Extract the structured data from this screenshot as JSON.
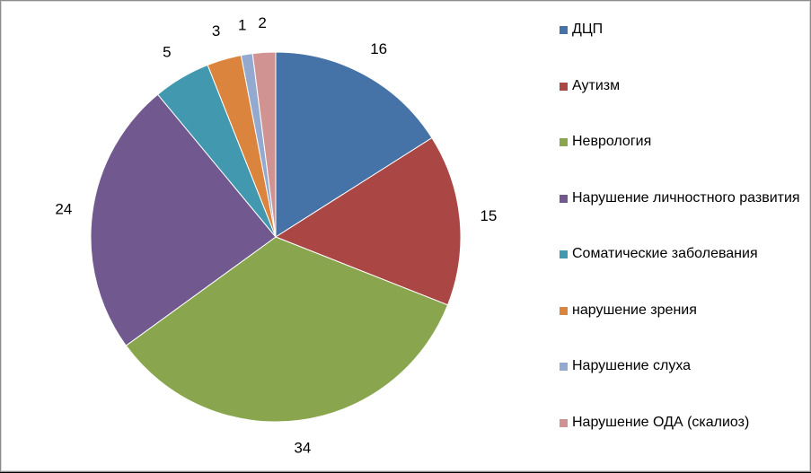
{
  "chart_data": {
    "type": "pie",
    "title": "",
    "start_angle_deg": 0,
    "direction": "clockwise",
    "legend_position": "right",
    "slices": [
      {
        "label": "ДЦП",
        "value": 16,
        "color": "#4572a7"
      },
      {
        "label": "Аутизм",
        "value": 15,
        "color": "#aa4643"
      },
      {
        "label": "Неврология",
        "value": 34,
        "color": "#89a54e"
      },
      {
        "label": "Нарушение личностного развития",
        "value": 24,
        "color": "#71588f"
      },
      {
        "label": "Соматические заболевания",
        "value": 5,
        "color": "#4198af"
      },
      {
        "label": "нарушение зрения",
        "value": 3,
        "color": "#db843d"
      },
      {
        "label": "Нарушение слуха",
        "value": 1,
        "color": "#93a9cf"
      },
      {
        "label": "Нарушение ОДА (скалиоз)",
        "value": 2,
        "color": "#d19392"
      }
    ]
  }
}
